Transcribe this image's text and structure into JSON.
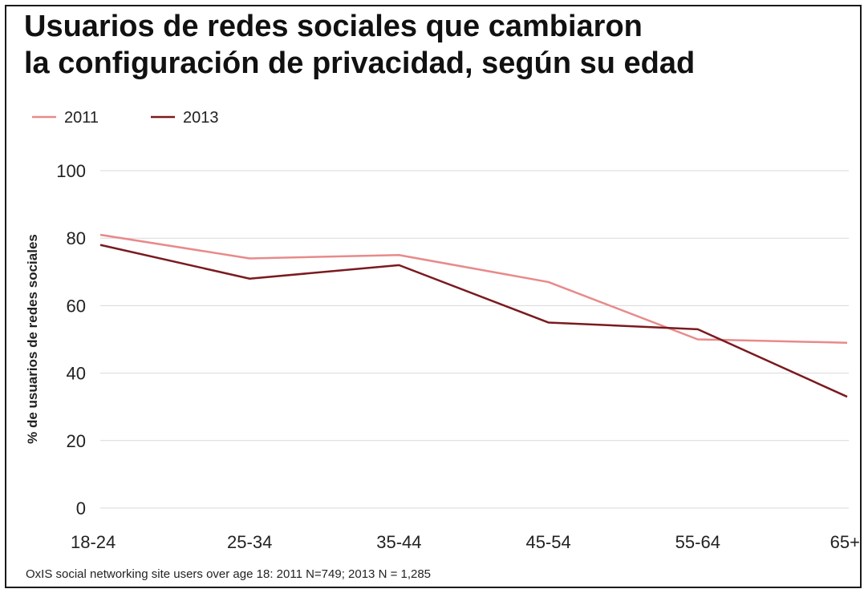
{
  "chart_data": {
    "type": "line",
    "title_lines": [
      "Usuarios de redes sociales que cambiaron",
      "la configuración de privacidad, según su edad"
    ],
    "ylabel": "% de usuarios de redes sociales",
    "xlabel": "",
    "categories": [
      "18-24",
      "25-34",
      "35-44",
      "45-54",
      "55-64",
      "65+"
    ],
    "yticks": [
      "0",
      "20",
      "40",
      "60",
      "80",
      "100"
    ],
    "ylim": [
      0,
      100
    ],
    "grid": true,
    "legend_position": "top-left",
    "series": [
      {
        "name": "2011",
        "color": "#e88a8a",
        "values": [
          81,
          74,
          75,
          67,
          50,
          49
        ]
      },
      {
        "name": "2013",
        "color": "#7a1a1f",
        "values": [
          78,
          68,
          72,
          55,
          53,
          33
        ]
      }
    ],
    "source": "OxIS social networking site users over age 18: 2011 N=749; 2013 N = 1,285"
  }
}
